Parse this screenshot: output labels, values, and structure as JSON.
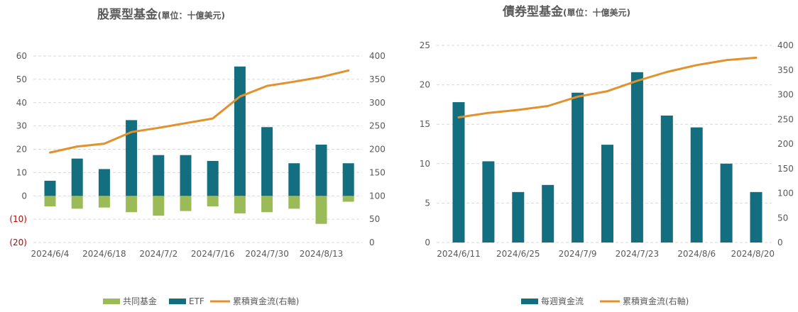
{
  "colors": {
    "etf": "#136e80",
    "mutual": "#9bbb59",
    "line": "#e3912c",
    "grid": "#d9d9d9",
    "axis_text": "#595959",
    "negative": "#c00000",
    "title": "#595959"
  },
  "chart_data": [
    {
      "type": "bar",
      "title": "股票型基金",
      "unit": "(單位：十億美元)",
      "x_tick_labels": [
        "2024/6/4",
        "2024/6/18",
        "2024/7/2",
        "2024/7/16",
        "2024/7/30",
        "2024/8/13"
      ],
      "categories": [
        "2024/6/4",
        "2024/6/11",
        "2024/6/18",
        "2024/6/25",
        "2024/7/2",
        "2024/7/9",
        "2024/7/16",
        "2024/7/23",
        "2024/7/30",
        "2024/8/6",
        "2024/8/13",
        "2024/8/20"
      ],
      "y_left": {
        "min": -20,
        "max": 60,
        "ticks": [
          60,
          50,
          40,
          30,
          20,
          10,
          0,
          -10,
          -20
        ],
        "tick_labels": [
          "60",
          "50",
          "40",
          "30",
          "20",
          "10",
          "0",
          "(10)",
          "(20)"
        ]
      },
      "y_right": {
        "min": 0,
        "max": 400,
        "ticks": [
          400,
          350,
          300,
          250,
          200,
          150,
          100,
          50,
          0
        ],
        "tick_labels": [
          "400",
          "350",
          "300",
          "250",
          "200",
          "150",
          "100",
          "50",
          "0"
        ]
      },
      "grid": true,
      "legend_position": "bottom",
      "series": [
        {
          "name": "共同基金",
          "type": "bar",
          "axis": "left",
          "color": "#9bbb59",
          "values": [
            -4.5,
            -5.5,
            -5,
            -7,
            -8.5,
            -6.5,
            -4.5,
            -7.5,
            -7,
            -5.5,
            -12,
            -2.5
          ]
        },
        {
          "name": "ETF",
          "type": "bar",
          "axis": "left",
          "color": "#136e80",
          "values": [
            6.5,
            16,
            11.5,
            32.5,
            17.5,
            17.5,
            15,
            55.5,
            29.5,
            14,
            22,
            14
          ]
        },
        {
          "name": "累積資金流(右軸)",
          "type": "line",
          "axis": "right",
          "color": "#e3912c",
          "values": [
            193,
            206,
            212,
            237,
            246,
            256,
            266,
            313,
            336,
            345,
            355,
            369
          ]
        }
      ]
    },
    {
      "type": "bar",
      "title": "債券型基金",
      "unit": "(單位：十億美元)",
      "x_tick_labels": [
        "2024/6/11",
        "2024/6/25",
        "2024/7/9",
        "2024/7/23",
        "2024/8/6",
        "2024/8/20"
      ],
      "categories": [
        "2024/6/11",
        "2024/6/18",
        "2024/6/25",
        "2024/7/2",
        "2024/7/9",
        "2024/7/16",
        "2024/7/23",
        "2024/7/30",
        "2024/8/6",
        "2024/8/13",
        "2024/8/20"
      ],
      "y_left": {
        "min": 0,
        "max": 25,
        "ticks": [
          25,
          20,
          15,
          10,
          5,
          0
        ],
        "tick_labels": [
          "25",
          "20",
          "15",
          "10",
          "5",
          "0"
        ]
      },
      "y_right": {
        "min": 0,
        "max": 400,
        "ticks": [
          400,
          350,
          300,
          250,
          200,
          150,
          100,
          50,
          0
        ],
        "tick_labels": [
          "400",
          "350",
          "300",
          "250",
          "200",
          "150",
          "100",
          "50",
          "0"
        ]
      },
      "grid": true,
      "legend_position": "bottom",
      "series": [
        {
          "name": "每週資金流",
          "type": "bar",
          "axis": "left",
          "color": "#136e80",
          "values": [
            17.8,
            10.3,
            6.4,
            7.3,
            19,
            12.4,
            21.6,
            16.1,
            14.6,
            10,
            6.4
          ]
        },
        {
          "name": "累積資金流(右軸)",
          "type": "line",
          "axis": "right",
          "color": "#e3912c",
          "values": [
            254,
            263,
            269,
            277,
            296,
            307,
            328,
            346,
            360,
            370,
            375
          ]
        }
      ]
    }
  ]
}
